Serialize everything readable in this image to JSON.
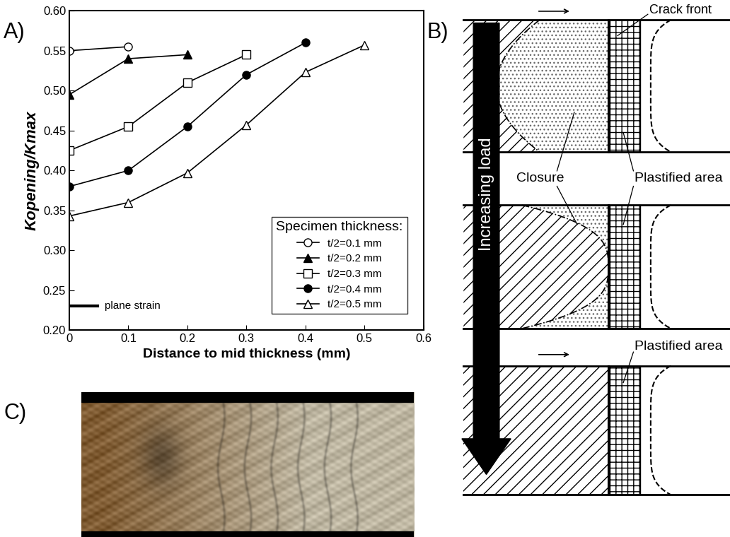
{
  "chart_data": {
    "type": "line",
    "panel_label": "A)",
    "xlabel": "Distance to mid thickness (mm)",
    "ylabel": "Kopening/Kmax",
    "xlim": [
      0,
      0.6
    ],
    "xticks": [
      0,
      0.1,
      0.2,
      0.3,
      0.4,
      0.5,
      0.6
    ],
    "ylim": [
      0.2,
      0.6
    ],
    "yticks": [
      {
        "value": 0.2,
        "label": "0.20"
      },
      0.25,
      {
        "value": 0.3,
        "label": "0.30"
      },
      0.35,
      {
        "value": 0.4,
        "label": "0.40"
      },
      0.45,
      {
        "value": 0.5,
        "label": "0.50"
      },
      0.55,
      {
        "value": 0.6,
        "label": "0.60"
      }
    ],
    "grid": false,
    "legend": "lower right",
    "legend_title": "Specimen thickness:",
    "plane_strain": {
      "text": "plane strain",
      "value": 0.23
    },
    "series": [
      {
        "name": "t/2=0.1 mm",
        "color": "#000000",
        "marker": "circle_open",
        "line_style": "solid",
        "x": [
          0,
          0.1
        ],
        "values": [
          0.55,
          0.555
        ]
      },
      {
        "name": "t/2=0.2 mm",
        "color": "#000000",
        "marker": "triangle_filled",
        "line_style": "solid",
        "x": [
          0,
          0.1,
          0.2
        ],
        "values": [
          0.495,
          0.54,
          0.545
        ]
      },
      {
        "name": "t/2=0.3 mm",
        "color": "#000000",
        "marker": "square_open",
        "line_style": "solid",
        "x": [
          0,
          0.1,
          0.2,
          0.3
        ],
        "values": [
          0.425,
          0.455,
          0.51,
          0.545
        ]
      },
      {
        "name": "t/2=0.4 mm",
        "color": "#000000",
        "marker": "circle_filled",
        "line_style": "solid",
        "x": [
          0,
          0.1,
          0.2,
          0.3,
          0.4
        ],
        "values": [
          0.38,
          0.4,
          0.455,
          0.52,
          0.56
        ]
      },
      {
        "name": "t/2=0.5 mm",
        "color": "#000000",
        "marker": "triangle_open",
        "line_style": "solid",
        "x": [
          0,
          0.1,
          0.2,
          0.3,
          0.4,
          0.5
        ],
        "values": [
          0.343,
          0.36,
          0.397,
          0.457,
          0.523,
          0.557
        ]
      }
    ]
  },
  "diagram": {
    "panel_label": "B)",
    "arrow_label": "Increasing load",
    "crack_front": "Crack front",
    "closure": "Closure",
    "plastified_area": [
      "Plastified area",
      "Plastified area"
    ]
  },
  "photo": {
    "panel_label": "C)"
  }
}
